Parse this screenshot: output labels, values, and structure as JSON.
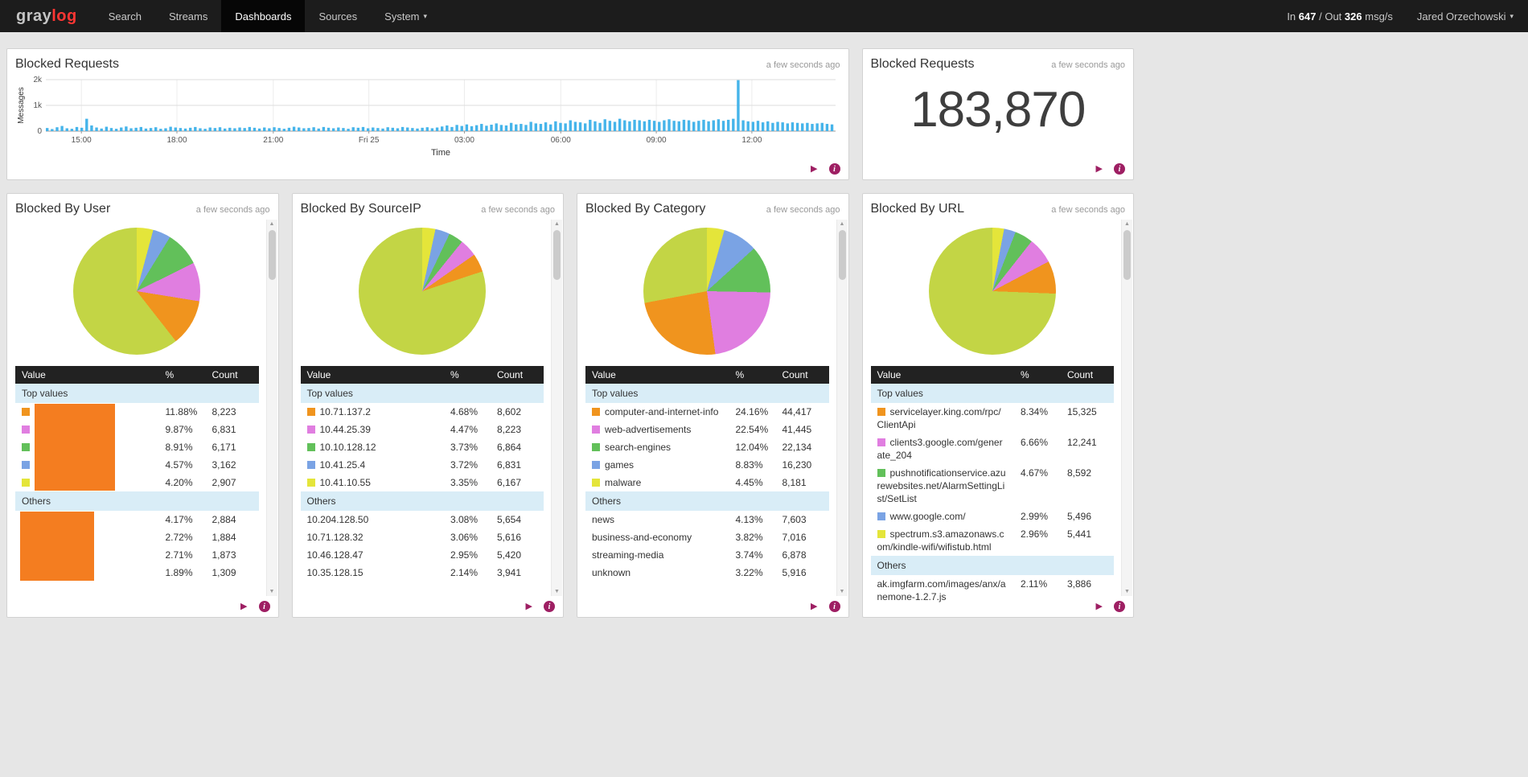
{
  "navbar": {
    "logo": {
      "part1": "gray",
      "part2": "log"
    },
    "items": [
      {
        "label": "Search"
      },
      {
        "label": "Streams"
      },
      {
        "label": "Dashboards",
        "active": true
      },
      {
        "label": "Sources"
      },
      {
        "label": "System",
        "caret": true
      }
    ],
    "throughput": {
      "in_word": "In",
      "in_value": "647",
      "out_word": "/ Out",
      "out_value": "326",
      "unit": "msg/s"
    },
    "user": "Jared Orzechowski"
  },
  "widgets": {
    "chart": {
      "title": "Blocked Requests",
      "updated": "a few seconds ago"
    },
    "count": {
      "title": "Blocked Requests",
      "updated": "a few seconds ago",
      "value": "183,870"
    },
    "pies": [
      {
        "title": "Blocked By User",
        "updated": "a few seconds ago",
        "columns": [
          "Value",
          "%",
          "Count"
        ],
        "sections": [
          {
            "label": "Top values",
            "rows": [
              {
                "swatch": "orange",
                "value": "",
                "redact_group": "1",
                "pct": "11.88%",
                "count": "8,223"
              },
              {
                "swatch": "pink",
                "value": "",
                "redact_group": "1",
                "pct": "9.87%",
                "count": "6,831"
              },
              {
                "swatch": "green",
                "value": "",
                "redact_group": "1",
                "pct": "8.91%",
                "count": "6,171"
              },
              {
                "swatch": "blue",
                "value": "",
                "redact_group": "1",
                "pct": "4.57%",
                "count": "3,162"
              },
              {
                "swatch": "yellow",
                "value": "",
                "redact_group": "1",
                "pct": "4.20%",
                "count": "2,907"
              }
            ]
          },
          {
            "label": "Others",
            "rows": [
              {
                "value": "",
                "redact_group": "2",
                "pct": "4.17%",
                "count": "2,884"
              },
              {
                "value": "",
                "redact_group": "2",
                "pct": "2.72%",
                "count": "1,884"
              },
              {
                "value": "",
                "redact_group": "2",
                "pct": "2.71%",
                "count": "1,873"
              },
              {
                "value": "",
                "redact_group": "2",
                "pct": "1.89%",
                "count": "1,309"
              }
            ]
          }
        ]
      },
      {
        "title": "Blocked By SourceIP",
        "updated": "a few seconds ago",
        "columns": [
          "Value",
          "%",
          "Count"
        ],
        "sections": [
          {
            "label": "Top values",
            "rows": [
              {
                "swatch": "orange",
                "value": "10.71.137.2",
                "pct": "4.68%",
                "count": "8,602"
              },
              {
                "swatch": "pink",
                "value": "10.44.25.39",
                "pct": "4.47%",
                "count": "8,223"
              },
              {
                "swatch": "green",
                "value": "10.10.128.12",
                "pct": "3.73%",
                "count": "6,864"
              },
              {
                "swatch": "blue",
                "value": "10.41.25.4",
                "pct": "3.72%",
                "count": "6,831"
              },
              {
                "swatch": "yellow",
                "value": "10.41.10.55",
                "pct": "3.35%",
                "count": "6,167"
              }
            ]
          },
          {
            "label": "Others",
            "rows": [
              {
                "value": "10.204.128.50",
                "pct": "3.08%",
                "count": "5,654"
              },
              {
                "value": "10.71.128.32",
                "pct": "3.06%",
                "count": "5,616"
              },
              {
                "value": "10.46.128.47",
                "pct": "2.95%",
                "count": "5,420"
              },
              {
                "value": "10.35.128.15",
                "pct": "2.14%",
                "count": "3,941"
              }
            ]
          }
        ]
      },
      {
        "title": "Blocked By Category",
        "updated": "a few seconds ago",
        "columns": [
          "Value",
          "%",
          "Count"
        ],
        "sections": [
          {
            "label": "Top values",
            "rows": [
              {
                "swatch": "orange",
                "value": "computer-and-internet-info",
                "pct": "24.16%",
                "count": "44,417"
              },
              {
                "swatch": "pink",
                "value": "web-advertisements",
                "pct": "22.54%",
                "count": "41,445"
              },
              {
                "swatch": "green",
                "value": "search-engines",
                "pct": "12.04%",
                "count": "22,134"
              },
              {
                "swatch": "blue",
                "value": "games",
                "pct": "8.83%",
                "count": "16,230"
              },
              {
                "swatch": "yellow",
                "value": "malware",
                "pct": "4.45%",
                "count": "8,181"
              }
            ]
          },
          {
            "label": "Others",
            "rows": [
              {
                "value": "news",
                "pct": "4.13%",
                "count": "7,603"
              },
              {
                "value": "business-and-economy",
                "pct": "3.82%",
                "count": "7,016"
              },
              {
                "value": "streaming-media",
                "pct": "3.74%",
                "count": "6,878"
              },
              {
                "value": "unknown",
                "pct": "3.22%",
                "count": "5,916"
              }
            ]
          }
        ]
      },
      {
        "title": "Blocked By URL",
        "updated": "a few seconds ago",
        "columns": [
          "Value",
          "%",
          "Count"
        ],
        "sections": [
          {
            "label": "Top values",
            "rows": [
              {
                "swatch": "orange",
                "value": "servicelayer.king.com/rpc/ClientApi",
                "pct": "8.34%",
                "count": "15,325"
              },
              {
                "swatch": "pink",
                "value": "clients3.google.com/generate_204",
                "pct": "6.66%",
                "count": "12,241"
              },
              {
                "swatch": "green",
                "value": "pushnotificationservice.azurewebsites.net/AlarmSettingList/SetList",
                "pct": "4.67%",
                "count": "8,592"
              },
              {
                "swatch": "blue",
                "value": "www.google.com/",
                "pct": "2.99%",
                "count": "5,496"
              },
              {
                "swatch": "yellow",
                "value": "spectrum.s3.amazonaws.com/kindle-wifi/wifistub.html",
                "pct": "2.96%",
                "count": "5,441"
              }
            ]
          },
          {
            "label": "Others",
            "rows": [
              {
                "value": "ak.imgfarm.com/images/anx/anemone-1.2.7.js",
                "pct": "2.11%",
                "count": "3,886"
              }
            ]
          }
        ]
      }
    ]
  },
  "palette": {
    "orange": "#f0941e",
    "pink": "#e07ee0",
    "green": "#62c05a",
    "blue": "#7aa3e4",
    "yellow": "#e4e53a",
    "chartreuse": "#c3d545",
    "bar": "#45b4ea",
    "accent": "#9e1f63",
    "redact": "#f47d20"
  },
  "chart_data": [
    {
      "type": "bar",
      "title": "Blocked Requests",
      "ylabel": "Messages",
      "xlabel": "Time",
      "ymax": 2000,
      "yticks": [
        {
          "label": "0",
          "v": 0
        },
        {
          "label": "1k",
          "v": 1000
        },
        {
          "label": "2k",
          "v": 2000
        }
      ],
      "xticks": [
        {
          "label": "15:00",
          "f": 0.045
        },
        {
          "label": "18:00",
          "f": 0.166
        },
        {
          "label": "21:00",
          "f": 0.288
        },
        {
          "label": "Fri 25",
          "f": 0.409
        },
        {
          "label": "03:00",
          "f": 0.53
        },
        {
          "label": "06:00",
          "f": 0.652
        },
        {
          "label": "09:00",
          "f": 0.773
        },
        {
          "label": "12:00",
          "f": 0.894
        }
      ],
      "values": [
        120,
        80,
        150,
        200,
        110,
        90,
        160,
        130,
        480,
        220,
        140,
        100,
        170,
        120,
        90,
        140,
        180,
        110,
        130,
        160,
        100,
        120,
        150,
        90,
        110,
        170,
        140,
        120,
        100,
        130,
        160,
        110,
        90,
        140,
        120,
        150,
        100,
        130,
        110,
        140,
        120,
        160,
        130,
        100,
        140,
        110,
        150,
        120,
        90,
        130,
        170,
        140,
        110,
        120,
        150,
        100,
        160,
        130,
        110,
        140,
        120,
        90,
        150,
        130,
        160,
        110,
        140,
        120,
        100,
        150,
        130,
        110,
        160,
        140,
        120,
        100,
        130,
        150,
        110,
        140,
        180,
        220,
        160,
        240,
        200,
        260,
        190,
        230,
        280,
        210,
        250,
        300,
        240,
        220,
        320,
        260,
        280,
        240,
        360,
        300,
        280,
        340,
        260,
        380,
        320,
        300,
        420,
        360,
        340,
        300,
        440,
        380,
        320,
        460,
        400,
        360,
        480,
        420,
        380,
        440,
        420,
        380,
        440,
        400,
        360,
        420,
        460,
        400,
        380,
        440,
        420,
        360,
        400,
        440,
        380,
        420,
        460,
        400,
        440,
        480,
        1980,
        420,
        380,
        360,
        400,
        340,
        380,
        320,
        360,
        340,
        300,
        340,
        320,
        300,
        320,
        280,
        300,
        320,
        280,
        260
      ]
    },
    {
      "type": "pie",
      "title": "Blocked By User",
      "slices": [
        {
          "label": "",
          "color": "yellow",
          "pct": 4.2
        },
        {
          "label": "",
          "color": "blue",
          "pct": 4.57
        },
        {
          "label": "",
          "color": "green",
          "pct": 8.91
        },
        {
          "label": "",
          "color": "pink",
          "pct": 9.87
        },
        {
          "label": "",
          "color": "orange",
          "pct": 11.88
        },
        {
          "label": "Others",
          "color": "chartreuse",
          "pct": 60.57
        }
      ]
    },
    {
      "type": "pie",
      "title": "Blocked By SourceIP",
      "slices": [
        {
          "label": "10.41.10.55",
          "color": "yellow",
          "pct": 3.35
        },
        {
          "label": "10.41.25.4",
          "color": "blue",
          "pct": 3.72
        },
        {
          "label": "10.10.128.12",
          "color": "green",
          "pct": 3.73
        },
        {
          "label": "10.44.25.39",
          "color": "pink",
          "pct": 4.47
        },
        {
          "label": "10.71.137.2",
          "color": "orange",
          "pct": 4.68
        },
        {
          "label": "Others",
          "color": "chartreuse",
          "pct": 80.05
        }
      ]
    },
    {
      "type": "pie",
      "title": "Blocked By Category",
      "slices": [
        {
          "label": "malware",
          "color": "yellow",
          "pct": 4.45
        },
        {
          "label": "games",
          "color": "blue",
          "pct": 8.83
        },
        {
          "label": "search-engines",
          "color": "green",
          "pct": 12.04
        },
        {
          "label": "web-advertisements",
          "color": "pink",
          "pct": 22.54
        },
        {
          "label": "computer-and-internet-info",
          "color": "orange",
          "pct": 24.16
        },
        {
          "label": "Others",
          "color": "chartreuse",
          "pct": 27.98
        }
      ]
    },
    {
      "type": "pie",
      "title": "Blocked By URL",
      "slices": [
        {
          "label": "spectrum.s3.amazonaws.com/kindle-wifi/wifistub.html",
          "color": "yellow",
          "pct": 2.96
        },
        {
          "label": "www.google.com/",
          "color": "blue",
          "pct": 2.99
        },
        {
          "label": "pushnotificationservice.azurewebsites.net/AlarmSettingList/SetList",
          "color": "green",
          "pct": 4.67
        },
        {
          "label": "clients3.google.com/generate_204",
          "color": "pink",
          "pct": 6.66
        },
        {
          "label": "servicelayer.king.com/rpc/ClientApi",
          "color": "orange",
          "pct": 8.34
        },
        {
          "label": "Others",
          "color": "chartreuse",
          "pct": 74.38
        }
      ]
    }
  ]
}
